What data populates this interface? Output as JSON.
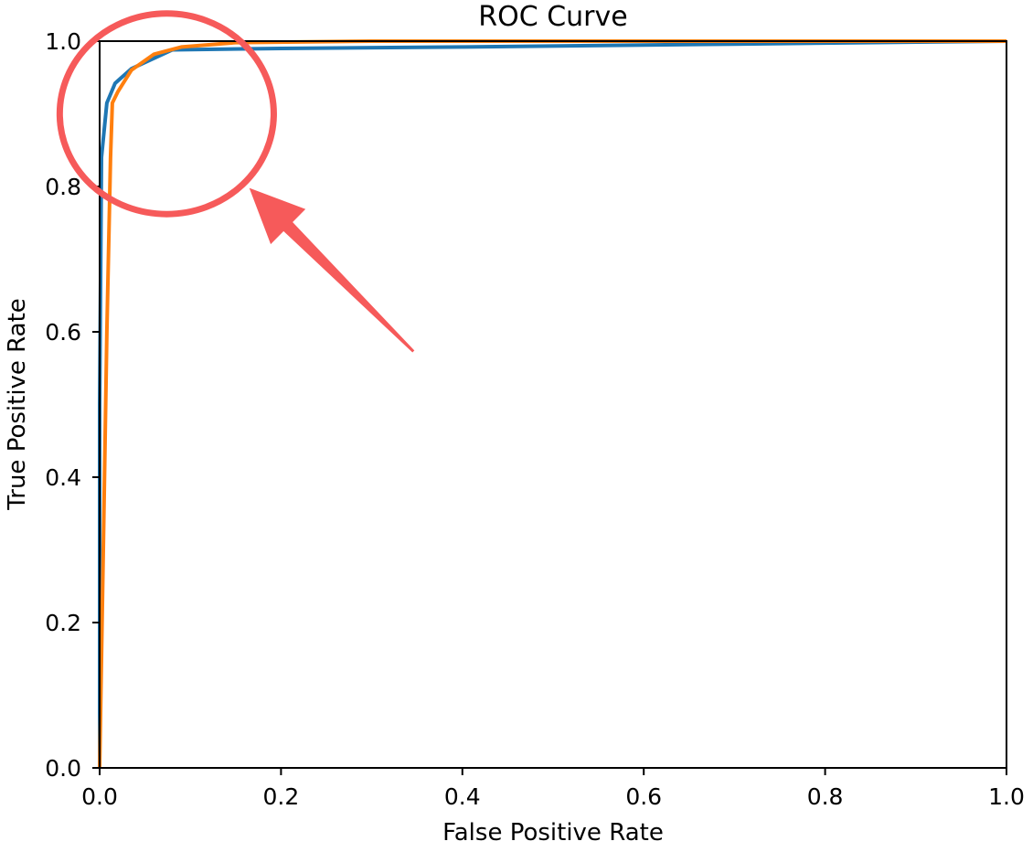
{
  "chart_data": {
    "type": "line",
    "title": "ROC Curve",
    "xlabel": "False Positive Rate",
    "ylabel": "True Positive Rate",
    "xlim": [
      0.0,
      1.0
    ],
    "ylim": [
      0.0,
      1.0
    ],
    "grid": false,
    "x_ticks": [
      "0.0",
      "0.2",
      "0.4",
      "0.6",
      "0.8",
      "1.0"
    ],
    "y_ticks": [
      "0.0",
      "0.2",
      "0.4",
      "0.6",
      "0.8",
      "1.0"
    ],
    "series": [
      {
        "color": "#1f77b4",
        "points": [
          [
            0.0,
            0.0
          ],
          [
            0.0,
            0.5
          ],
          [
            0.002,
            0.84
          ],
          [
            0.008,
            0.915
          ],
          [
            0.017,
            0.942
          ],
          [
            0.035,
            0.962
          ],
          [
            0.08,
            0.988
          ],
          [
            0.2,
            0.99
          ],
          [
            0.4,
            0.992
          ],
          [
            0.7,
            0.996
          ],
          [
            1.0,
            1.0
          ]
        ]
      },
      {
        "color": "#ff7f0e",
        "points": [
          [
            0.0,
            0.0
          ],
          [
            0.004,
            0.3
          ],
          [
            0.008,
            0.6
          ],
          [
            0.012,
            0.84
          ],
          [
            0.014,
            0.915
          ],
          [
            0.02,
            0.93
          ],
          [
            0.035,
            0.96
          ],
          [
            0.06,
            0.982
          ],
          [
            0.09,
            0.992
          ],
          [
            0.15,
            0.998
          ],
          [
            0.3,
            1.0
          ],
          [
            1.0,
            1.0
          ]
        ]
      }
    ],
    "annotation": {
      "shape": "circle-and-arrow",
      "color": "#f65a5a",
      "circle_center": [
        0.074,
        0.9
      ],
      "circle_radius_x": 0.118,
      "circle_radius_y": 0.138,
      "arrow_from": [
        0.346,
        0.573
      ],
      "arrow_to": [
        0.165,
        0.798
      ]
    }
  }
}
